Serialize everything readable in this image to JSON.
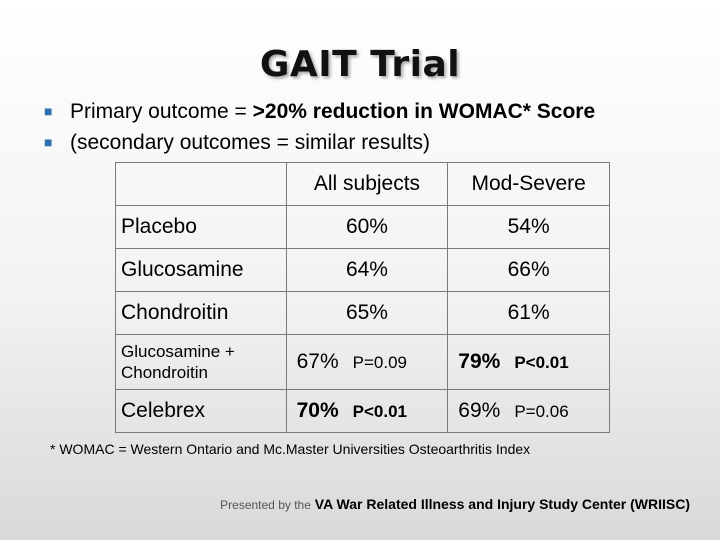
{
  "title": "GAIT Trial",
  "bullets": [
    {
      "prefix": "Primary outcome = ",
      "emph": ">20%",
      "suffix": " reduction in WOMAC* Score"
    },
    {
      "prefix": "(secondary outcomes = similar results)",
      "emph": "",
      "suffix": ""
    }
  ],
  "table": {
    "headers": [
      "",
      "All subjects",
      "Mod-Severe"
    ],
    "rows": [
      {
        "label": "Placebo",
        "all": "60%",
        "all_p": "",
        "mod": "54%",
        "mod_p": ""
      },
      {
        "label": "Glucosamine",
        "all": "64%",
        "all_p": "",
        "mod": "66%",
        "mod_p": ""
      },
      {
        "label": "Chondroitin",
        "all": "65%",
        "all_p": "",
        "mod": "61%",
        "mod_p": ""
      },
      {
        "label": "Glucosamine + Chondroitin",
        "all": "67%",
        "all_p": "P=0.09",
        "mod": "79%",
        "mod_p": "P<0.01"
      },
      {
        "label": "Celebrex",
        "all": "70%",
        "all_p": "P<0.01",
        "mod": "69%",
        "mod_p": "P=0.06"
      }
    ]
  },
  "footnote": "* WOMAC = Western Ontario and Mc.Master Universities Osteoarthritis Index",
  "footer": {
    "lead": "Presented by the",
    "org": "VA War Related Illness and Injury Study Center (WRIISC)"
  },
  "colors": {
    "bullet": "#2e6fb0"
  }
}
